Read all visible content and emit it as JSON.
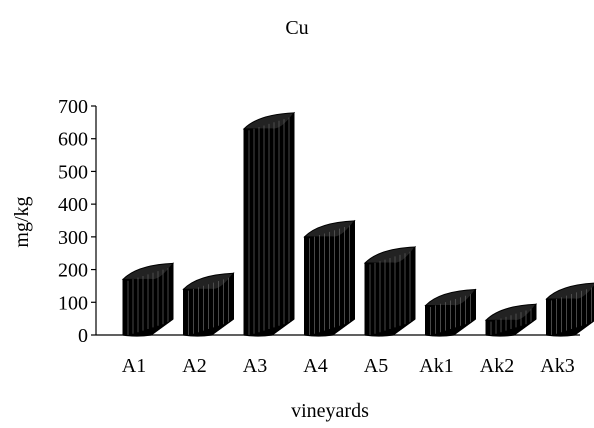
{
  "chart_data": {
    "type": "bar",
    "title": "Cu",
    "xlabel": "vineyards",
    "ylabel": "mg/kg",
    "categories": [
      "A1",
      "A2",
      "A3",
      "A4",
      "A5",
      "Ak1",
      "Ak2",
      "Ak3"
    ],
    "values": [
      170,
      140,
      630,
      300,
      220,
      90,
      45,
      110
    ],
    "ylim": [
      0,
      700
    ],
    "yticks": [
      "0",
      "100",
      "200",
      "300",
      "400",
      "500",
      "600",
      "700"
    ],
    "grid": false,
    "legend": "none",
    "bar_style": "3d-cylinder",
    "bar_color": "#000000"
  }
}
